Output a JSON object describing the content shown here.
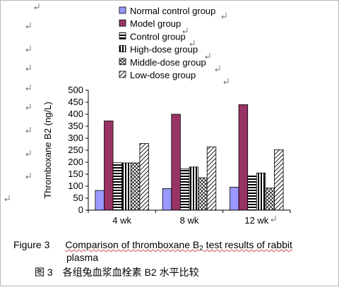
{
  "chart_data": {
    "type": "bar",
    "categories": [
      "4 wk",
      "8 wk",
      "12 wk"
    ],
    "series": [
      {
        "name": "Normal control group",
        "values": [
          82,
          90,
          96
        ],
        "fill": "#9999ff",
        "pattern": "solid"
      },
      {
        "name": "Model group",
        "values": [
          372,
          400,
          440
        ],
        "fill": "#993366",
        "pattern": "solid"
      },
      {
        "name": "Control group",
        "values": [
          198,
          172,
          143
        ],
        "fill": "#ffffff",
        "pattern": "hlines"
      },
      {
        "name": "High-dose group",
        "values": [
          197,
          180,
          155
        ],
        "fill": "#ffffff",
        "pattern": "vlines"
      },
      {
        "name": "Middle-dose group",
        "values": [
          197,
          135,
          92
        ],
        "fill": "#ffffff",
        "pattern": "crosshatch"
      },
      {
        "name": "Low-dose group",
        "values": [
          278,
          264,
          252
        ],
        "fill": "#ffffff",
        "pattern": "diag"
      }
    ],
    "ylabel": "Thromboxane B2 (ng/L)",
    "ylim": [
      0,
      500
    ],
    "yticks": [
      0,
      50,
      100,
      150,
      200,
      250,
      300,
      350,
      400,
      450,
      500
    ],
    "legend_position": "top",
    "grid": false
  },
  "caption": {
    "figure_label": "Figure 3",
    "title_pre": "Comparison of thromboxane B",
    "title_sub": "2",
    "title_post": " test results of rabbit",
    "title_line2": "plasma",
    "chinese": "图 3　各组兔血浆血栓素 B2 水平比较"
  }
}
